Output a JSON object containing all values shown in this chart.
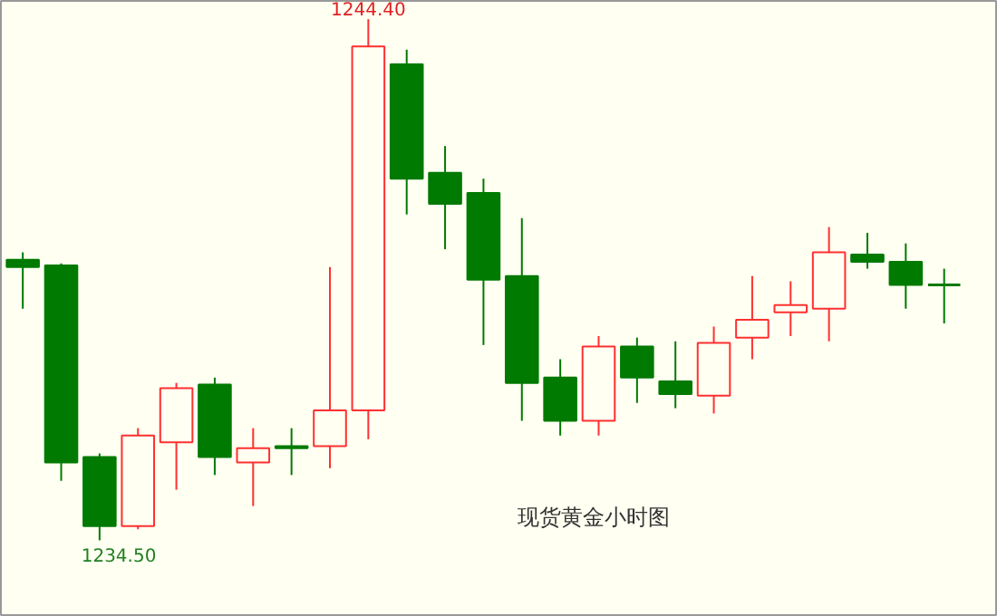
{
  "chart_data": {
    "type": "candlestick",
    "title": "现货黄金小时图",
    "categories": [
      null,
      null,
      null,
      null,
      null,
      null,
      null,
      null,
      null,
      null,
      null,
      null,
      null,
      null,
      null,
      null,
      null,
      null,
      null,
      null,
      null,
      null,
      null,
      null,
      null
    ],
    "ohlc": [
      [
        1239.83,
        1239.97,
        1238.9,
        1239.69
      ],
      [
        1239.72,
        1239.76,
        1235.63,
        1235.98
      ],
      [
        1236.08,
        1236.15,
        1234.5,
        1234.77
      ],
      [
        1234.77,
        1236.63,
        1234.71,
        1236.49
      ],
      [
        1236.36,
        1237.49,
        1235.46,
        1237.39
      ],
      [
        1237.46,
        1237.59,
        1235.74,
        1236.08
      ],
      [
        1235.98,
        1236.63,
        1235.15,
        1236.25
      ],
      [
        1236.29,
        1236.63,
        1235.74,
        1236.25
      ],
      [
        1236.29,
        1239.69,
        1235.87,
        1236.97
      ],
      [
        1236.97,
        1244.4,
        1236.42,
        1243.88
      ],
      [
        1243.54,
        1243.82,
        1240.69,
        1241.37
      ],
      [
        1241.48,
        1241.99,
        1240.03,
        1240.89
      ],
      [
        1241.1,
        1241.37,
        1238.21,
        1239.45
      ],
      [
        1239.52,
        1240.62,
        1236.77,
        1237.49
      ],
      [
        1237.59,
        1237.94,
        1236.49,
        1236.77
      ],
      [
        1236.77,
        1238.38,
        1236.49,
        1238.18
      ],
      [
        1238.18,
        1238.35,
        1237.11,
        1237.59
      ],
      [
        1237.52,
        1238.28,
        1237.01,
        1237.28
      ],
      [
        1237.25,
        1238.56,
        1236.91,
        1238.25
      ],
      [
        1238.35,
        1239.52,
        1237.94,
        1238.69
      ],
      [
        1238.83,
        1239.42,
        1238.38,
        1238.97
      ],
      [
        1238.9,
        1240.45,
        1238.28,
        1239.97
      ],
      [
        1239.93,
        1240.34,
        1239.66,
        1239.79
      ],
      [
        1239.79,
        1240.14,
        1238.9,
        1239.35
      ],
      [
        1239.35,
        1239.66,
        1238.62,
        1239.35
      ]
    ],
    "colors": [
      "#007a00",
      "#007a00",
      "#007a00",
      "#ff3030",
      "#ff3030",
      "#007a00",
      "#ff3030",
      "#007a00",
      "#ff3030",
      "#ff3030",
      "#007a00",
      "#007a00",
      "#007a00",
      "#007a00",
      "#007a00",
      "#ff3030",
      "#007a00",
      "#007a00",
      "#ff3030",
      "#ff3030",
      "#ff3030",
      "#ff3030",
      "#007a00",
      "#007a00",
      "#007a00"
    ],
    "annotations": [
      {
        "text": "1244.40",
        "y": 1244.4
      },
      "1234.50"
    ]
  }
}
